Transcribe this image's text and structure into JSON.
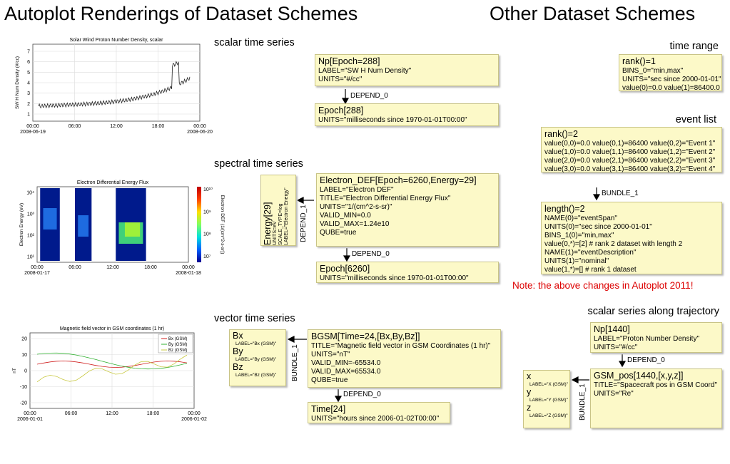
{
  "title_left": "Autoplot Renderings of Dataset Schemes",
  "title_right": "Other Dataset Schemes",
  "sections": [
    "scalar time series",
    "spectral time series",
    "vector time series",
    "time range",
    "event list",
    "scalar series along trajectory"
  ],
  "note": "Note: the above changes in Autoplot 2011!",
  "links": [
    "DEPEND_0",
    "DEPEND_1",
    "DEPEND_0",
    "BUNDLE_1",
    "DEPEND_0",
    "BUNDLE_1",
    "DEPEND_0",
    "BUNDLE_1"
  ],
  "boxes": {
    "np": [
      "Np[Epoch=288]",
      "LABEL=\"SW H Num Density\"",
      "UNITS=\"#/cc\""
    ],
    "epoch": [
      "Epoch[288]",
      "UNITS=\"milliseconds since 1970-01-01T00:00\""
    ],
    "edef": [
      "Electron_DEF[Epoch=6260,Energy=29]",
      "LABEL=\"Electron DEF\"",
      "TITLE=\"Electron Differential Energy Flux\"",
      "UNITS=\"1/(cm^2-s-sr)\"",
      "VALID_MIN=0.0",
      "VALID_MAX=1.24e10",
      "QUBE=true"
    ],
    "energy": [
      "Energy[29]",
      "UNITS=eV",
      "SCALE_TYPE=log",
      "LABEL=\"Electron Energy\""
    ],
    "epoch2": [
      "Epoch[6260]",
      "UNITS=\"milliseconds since 1970-01-01T00:00\""
    ],
    "bxyz": [
      "Bx",
      "LABEL=\"Bx (GSM)\"",
      "By",
      "LABEL=\"By (GSM)\"",
      "Bz",
      "LABEL=\"Bz (GSM)\""
    ],
    "bgsm": [
      "BGSM[Time=24,[Bx,By,Bz]]",
      "TITLE=\"Magnetic field vector in GSM Coordinates (1 hr)\"",
      "UNITS=\"nT\"",
      "VALID_MIN=-65534.0",
      "VALID_MAX=65534.0",
      "QUBE=true"
    ],
    "time24": [
      "Time[24]",
      "UNITS=\"hours since 2006-01-02T00:00\""
    ],
    "timerange": [
      "rank()=1",
      "BINS_0=\"min,max\"",
      "UNITS=\"sec since 2000-01-01\"",
      "value(0)=0.0  value(1)=86400.0"
    ],
    "eventlist": [
      "rank()=2",
      "value(0,0)=0.0  value(0,1)=86400  value(0,2)=\"Event 1\"",
      "value(1,0)=0.0  value(1,1)=86400  value(1,2)=\"Event 2\"",
      "value(2,0)=0.0  value(2,1)=86400  value(2,2)=\"Event 3\"",
      "value(3,0)=0.0  value(3,1)=86400  value(3,2)=\"Event 4\""
    ],
    "bundle": [
      "length()=2",
      "NAME(0)=\"eventSpan\"",
      "UNITS(0)=\"sec since 2000-01-01\"",
      "BINS_1(0)=\"min,max\"",
      "value(0,*)=[2]  # rank 2 dataset with length 2",
      "NAME(1)=\"eventDescription\"",
      "UNITS(1)=\"nominal\"",
      "value(1,*)=[]    # rank 1 dataset"
    ],
    "np1440": [
      "Np[1440]",
      "LABEL=\"Proton Number Density\"",
      "UNITS=\"#/cc\""
    ],
    "gsmpos": [
      "GSM_pos[1440,[x,y,z]]",
      "TITLE=\"Spacecraft pos in GSM Coord\"",
      "UNITS=\"Re\""
    ],
    "xyz": [
      "x",
      "LABEL=\"X (GSM)\"",
      "y",
      "LABEL=\"Y (GSM)\"",
      "z",
      "LABEL=\"Z (GSM)\""
    ]
  },
  "plots": [
    {
      "title": "Solar Wind Proton Number Density, scalar",
      "ylabel": "SW H Num Density (#/cc)",
      "yticks": [
        7,
        6,
        5,
        4,
        3,
        2,
        1
      ],
      "xticks": [
        "00:00",
        "06:00",
        "12:00",
        "18:00",
        "00:00"
      ],
      "dates": [
        "2008-06-19",
        "2008-06-20"
      ]
    },
    {
      "title": "Electron Differential Energy Flux",
      "ylabel": "Electron Energy (eV)",
      "yticks": [
        "10⁴",
        "10³",
        "10²",
        "10¹"
      ],
      "xticks": [
        "00:00",
        "06:00",
        "12:00",
        "18:00",
        "00:00"
      ],
      "dates": [
        "2008-01-17",
        "2008-01-18"
      ],
      "zticks": [
        "10¹⁰",
        "10⁹",
        "10⁸",
        "10⁷"
      ],
      "zlabel": "Electron DEF (1/(cm^2-s-sr))"
    },
    {
      "title": "Magnetic field vector in GSM coordinates (1 hr)",
      "ylabel": "nT",
      "yticks": [
        20,
        10,
        0,
        -10,
        -20
      ],
      "xticks": [
        "00:00",
        "06:00",
        "12:00",
        "18:00",
        "00:00"
      ],
      "dates": [
        "2006-01-01",
        "2006-01-02"
      ],
      "legend": [
        "Bx (GSM)",
        "By (GSM)",
        "Bz (GSM)"
      ]
    }
  ]
}
